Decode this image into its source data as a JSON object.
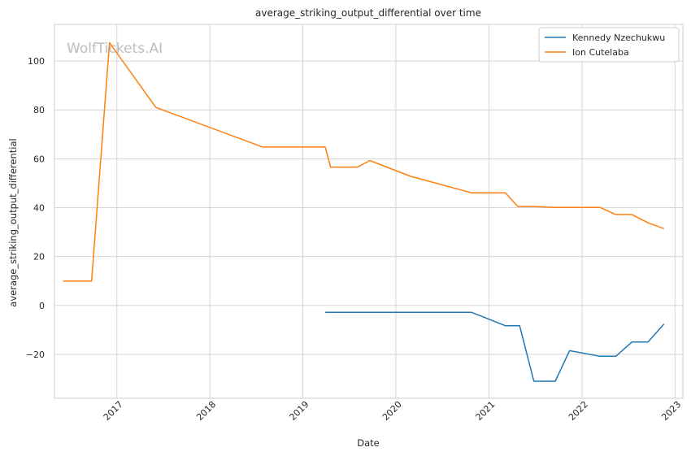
{
  "chart_data": {
    "type": "line",
    "title": "average_striking_output_differential over time",
    "xlabel": "Date",
    "ylabel": "average_striking_output_differential",
    "watermark": "WolfTickets.AI",
    "xlim": [
      "2016-05-01",
      "2023-02-01"
    ],
    "ylim": [
      -38,
      115
    ],
    "x_ticks": [
      "2017",
      "2018",
      "2019",
      "2020",
      "2021",
      "2022",
      "2023"
    ],
    "y_ticks": [
      -20,
      0,
      20,
      40,
      60,
      80,
      100
    ],
    "grid": true,
    "legend_position": "top-right",
    "series": [
      {
        "name": "Kennedy Nzechukwu",
        "color": "#1f77b4",
        "points": [
          [
            "2019-03-30",
            -2.8
          ],
          [
            "2020-10-24",
            -2.8
          ],
          [
            "2021-03-06",
            -8.3
          ],
          [
            "2021-05-01",
            -8.3
          ],
          [
            "2021-06-26",
            -31.0
          ],
          [
            "2021-09-18",
            -31.0
          ],
          [
            "2021-11-13",
            -18.5
          ],
          [
            "2022-03-12",
            -20.8
          ],
          [
            "2022-05-14",
            -20.8
          ],
          [
            "2022-07-16",
            -15.0
          ],
          [
            "2022-09-17",
            -15.0
          ],
          [
            "2022-11-19",
            -7.6
          ]
        ]
      },
      {
        "name": "Ion Cutelaba",
        "color": "#ff7f0e",
        "points": [
          [
            "2016-06-04",
            10.0
          ],
          [
            "2016-09-24",
            10.0
          ],
          [
            "2016-12-03",
            107.5
          ],
          [
            "2017-06-03",
            81.0
          ],
          [
            "2018-07-28",
            64.8
          ],
          [
            "2019-03-30",
            64.8
          ],
          [
            "2019-04-20",
            56.6
          ],
          [
            "2019-08-03",
            56.6
          ],
          [
            "2019-09-21",
            59.3
          ],
          [
            "2020-02-29",
            52.8
          ],
          [
            "2020-10-24",
            46.1
          ],
          [
            "2021-03-06",
            46.1
          ],
          [
            "2021-04-24",
            40.5
          ],
          [
            "2021-06-26",
            40.5
          ],
          [
            "2021-09-18",
            40.1
          ],
          [
            "2022-03-12",
            40.1
          ],
          [
            "2022-05-14",
            37.2
          ],
          [
            "2022-07-16",
            37.2
          ],
          [
            "2022-09-17",
            33.8
          ],
          [
            "2022-11-19",
            31.4
          ]
        ]
      }
    ]
  }
}
